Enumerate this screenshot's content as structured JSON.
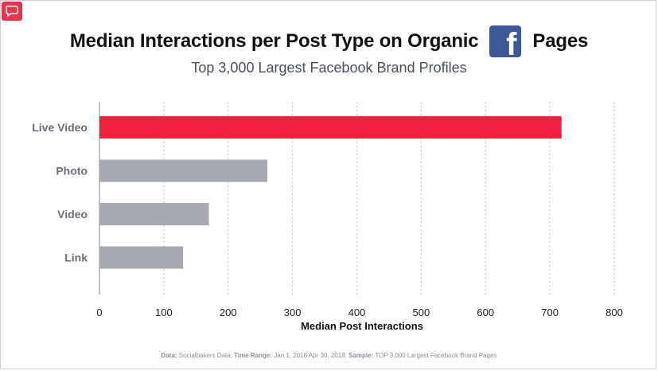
{
  "title_prefix": "Median Interactions per Post Type on Organic",
  "title_suffix": "Pages",
  "fb_letter": "f",
  "icons": {
    "brand_logo": "chat-bubble-icon",
    "facebook": "facebook-icon"
  },
  "footnote": {
    "data_label": "Data:",
    "data_value": " Socialbakers Data; ",
    "range_label": "Time Range:",
    "range_value": " Jan 1, 2018 Apr 30, 2018; ",
    "sample_label": "Sample:",
    "sample_value": " TOP 3,000 Largest Facebook Brand Pages"
  },
  "colors": {
    "highlight": "#f0203f",
    "bar": "#a6a9b0",
    "grid": "#c9c9c9",
    "brand": "#3b5998"
  },
  "chart_data": {
    "type": "bar",
    "orientation": "horizontal",
    "title": "Median Interactions per Post Type on Organic Pages",
    "subtitle": "Top 3,000 Largest Facebook Brand Profiles",
    "xlabel": "Median Post Interactions",
    "ylabel": "",
    "categories": [
      "Live Video",
      "Photo",
      "Video",
      "Link"
    ],
    "values": [
      718,
      261,
      170,
      130
    ],
    "xlim": [
      0,
      800
    ],
    "xticks": [
      0,
      100,
      200,
      300,
      400,
      500,
      600,
      700,
      800
    ],
    "grid": "vertical-dotted",
    "legend": "none"
  }
}
